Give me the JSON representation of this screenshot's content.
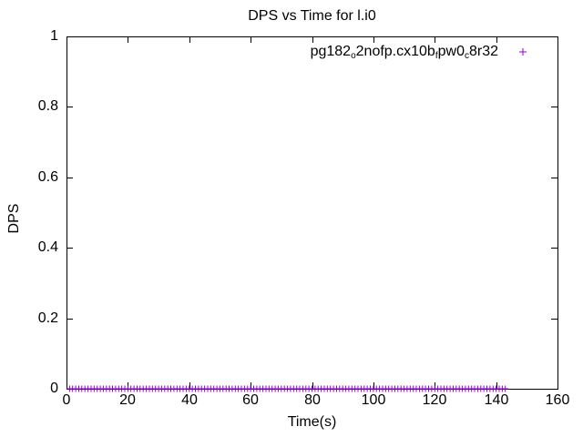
{
  "colors": {
    "series": "#9400D3",
    "axis": "#000000",
    "text": "#000000",
    "background": "#FFFFFF"
  },
  "chart_data": {
    "type": "scatter",
    "title": "DPS vs Time for l.i0",
    "xlabel": "Time(s)",
    "ylabel": "DPS",
    "xlim": [
      0,
      160
    ],
    "ylim": [
      0,
      1
    ],
    "xticks": [
      "0",
      "20",
      "40",
      "60",
      "80",
      "100",
      "120",
      "140",
      "160"
    ],
    "yticks": [
      "0",
      "0.2",
      "0.4",
      "0.6",
      "0.8",
      "1"
    ],
    "grid": false,
    "tick_style": "inward-mirrored",
    "legend": {
      "position": "top-right-inside",
      "entries": [
        {
          "label_plain": "pg182_o2nofp.cx10b_fpw0_c8r32",
          "label_segments": [
            {
              "text": "pg182",
              "sub": false
            },
            {
              "text": "o",
              "sub": true
            },
            {
              "text": "2nofp.cx10b",
              "sub": false
            },
            {
              "text": "f",
              "sub": true
            },
            {
              "text": "pw0",
              "sub": false
            },
            {
              "text": "c",
              "sub": true
            },
            {
              "text": "8r32",
              "sub": false
            }
          ],
          "marker": "+",
          "color": "#9400D3"
        }
      ]
    },
    "series": [
      {
        "name": "pg182_o2nofp.cx10b_fpw0_c8r32",
        "marker": "+",
        "color": "#9400D3",
        "x": [
          1,
          2,
          3,
          4,
          5,
          6,
          7,
          8,
          9,
          10,
          11,
          12,
          13,
          14,
          15,
          16,
          17,
          18,
          19,
          20,
          21,
          22,
          23,
          24,
          25,
          26,
          27,
          28,
          29,
          30,
          31,
          32,
          33,
          34,
          35,
          36,
          37,
          38,
          39,
          40,
          41,
          42,
          43,
          44,
          45,
          46,
          47,
          48,
          49,
          50,
          51,
          52,
          53,
          54,
          55,
          56,
          57,
          58,
          59,
          60,
          61,
          62,
          63,
          64,
          65,
          66,
          67,
          68,
          69,
          70,
          71,
          72,
          73,
          74,
          75,
          76,
          77,
          78,
          79,
          80,
          81,
          82,
          83,
          84,
          85,
          86,
          87,
          88,
          89,
          90,
          91,
          92,
          93,
          94,
          95,
          96,
          97,
          98,
          99,
          100,
          101,
          102,
          103,
          104,
          105,
          106,
          107,
          108,
          109,
          110,
          111,
          112,
          113,
          114,
          115,
          116,
          117,
          118,
          119,
          120,
          121,
          122,
          123,
          124,
          125,
          126,
          127,
          128,
          129,
          130,
          131,
          132,
          133,
          134,
          135,
          136,
          137,
          138,
          139,
          140,
          141,
          142,
          143
        ],
        "y_constant": 0
      }
    ]
  }
}
